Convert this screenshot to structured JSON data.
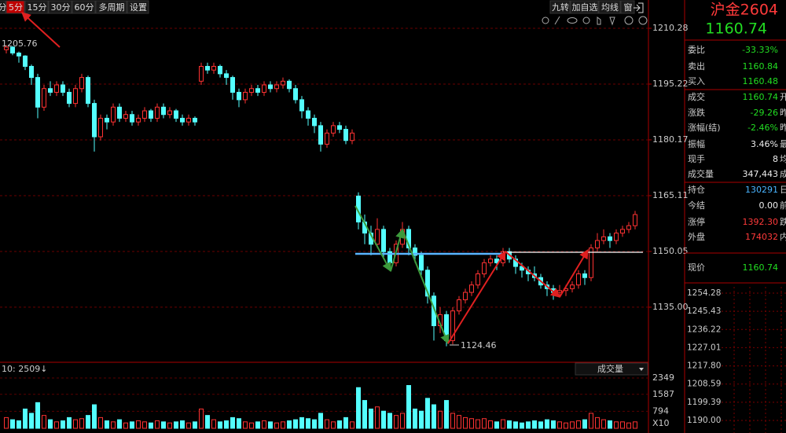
{
  "toolbar": {
    "tabs": [
      "分",
      "5分",
      "15分",
      "30分",
      "60分",
      "多周期",
      "设置"
    ],
    "actions": [
      "九转",
      "加自选",
      "均线",
      "窗"
    ]
  },
  "chart_data": [
    {
      "type": "candlestick",
      "up_color": "#ff3232",
      "down_color": "#54ffff",
      "ylim": [
        1120.35,
        1213.67
      ],
      "yticks": [
        {
          "value": 1210.28,
          "label": "1210.28"
        },
        {
          "value": 1195.22,
          "label": "1195.22"
        },
        {
          "value": 1180.17,
          "label": "1180.17"
        },
        {
          "value": 1165.11,
          "label": "1165.11"
        },
        {
          "value": 1150.05,
          "label": "1150.05"
        },
        {
          "value": 1135,
          "label": "1135.00"
        }
      ],
      "candles": [
        [
          1204.5,
          1205.76,
          1203.5,
          1205.2
        ],
        [
          1205.2,
          1205.5,
          1203,
          1203.6
        ],
        [
          1203.6,
          1204,
          1201,
          1202.8
        ],
        [
          1202.8,
          1203,
          1199,
          1200
        ],
        [
          1200,
          1200.5,
          1195,
          1197
        ],
        [
          1197,
          1198,
          1186,
          1189
        ],
        [
          1189,
          1195,
          1188,
          1194
        ],
        [
          1194,
          1196,
          1192,
          1193
        ],
        [
          1193,
          1196,
          1192,
          1195
        ],
        [
          1195,
          1196,
          1192,
          1193
        ],
        [
          1193,
          1194,
          1189,
          1190
        ],
        [
          1190,
          1195,
          1189,
          1194
        ],
        [
          1194,
          1198,
          1193,
          1197
        ],
        [
          1197,
          1197.5,
          1189,
          1190
        ],
        [
          1190,
          1191,
          1177,
          1181
        ],
        [
          1181,
          1187,
          1180,
          1186
        ],
        [
          1186,
          1187,
          1183,
          1185
        ],
        [
          1185,
          1190,
          1184,
          1189
        ],
        [
          1189,
          1190,
          1185,
          1186
        ],
        [
          1186,
          1188,
          1185,
          1187
        ],
        [
          1187,
          1188,
          1184,
          1185
        ],
        [
          1185,
          1187,
          1184,
          1186
        ],
        [
          1186,
          1189,
          1185,
          1188
        ],
        [
          1188,
          1188.5,
          1185,
          1186
        ],
        [
          1186,
          1190,
          1185,
          1189
        ],
        [
          1189,
          1190,
          1186,
          1187
        ],
        [
          1187,
          1189,
          1186,
          1188
        ],
        [
          1188,
          1188.5,
          1185,
          1186
        ],
        [
          1186,
          1187,
          1184,
          1185
        ],
        [
          1185,
          1187,
          1184,
          1186
        ],
        [
          1186,
          1186.5,
          1184,
          1185
        ],
        [
          1196,
          1201,
          1195,
          1200
        ],
        [
          1200,
          1201,
          1198,
          1199
        ],
        [
          1199,
          1201,
          1198,
          1200
        ],
        [
          1200,
          1200.5,
          1197,
          1198
        ],
        [
          1198,
          1199,
          1195,
          1197
        ],
        [
          1197,
          1197.5,
          1191,
          1193
        ],
        [
          1193,
          1194,
          1189,
          1191
        ],
        [
          1191,
          1194,
          1190,
          1193
        ],
        [
          1193,
          1195,
          1192,
          1194
        ],
        [
          1194,
          1195,
          1192,
          1193
        ],
        [
          1193,
          1196,
          1192,
          1195
        ],
        [
          1195,
          1196,
          1193,
          1194
        ],
        [
          1194,
          1196,
          1193,
          1195
        ],
        [
          1195,
          1197,
          1194,
          1196
        ],
        [
          1196,
          1196.5,
          1193,
          1194
        ],
        [
          1194,
          1195,
          1190,
          1191
        ],
        [
          1191,
          1192,
          1186,
          1188
        ],
        [
          1188,
          1189,
          1184,
          1186
        ],
        [
          1186,
          1187,
          1182,
          1184
        ],
        [
          1184,
          1185,
          1177,
          1179
        ],
        [
          1179,
          1183,
          1178,
          1182
        ],
        [
          1182,
          1185,
          1181,
          1184
        ],
        [
          1184,
          1185,
          1182,
          1183
        ],
        [
          1183,
          1184,
          1179,
          1180
        ],
        [
          1180,
          1183,
          1179,
          1182
        ],
        [
          1165,
          1166,
          1156,
          1158
        ],
        [
          1158,
          1160,
          1152,
          1155
        ],
        [
          1155,
          1157,
          1149,
          1152
        ],
        [
          1152,
          1159,
          1151,
          1156
        ],
        [
          1156,
          1157,
          1148,
          1150
        ],
        [
          1150,
          1151,
          1145,
          1147
        ],
        [
          1147,
          1153,
          1146,
          1152
        ],
        [
          1152,
          1158,
          1151,
          1156
        ],
        [
          1156,
          1157,
          1149,
          1151
        ],
        [
          1151,
          1152,
          1147,
          1149
        ],
        [
          1149,
          1150,
          1143,
          1145
        ],
        [
          1145,
          1146,
          1136,
          1138
        ],
        [
          1138,
          1139,
          1126,
          1130
        ],
        [
          1130,
          1135,
          1128,
          1133
        ],
        [
          1133,
          1134,
          1124.46,
          1126
        ],
        [
          1126,
          1135,
          1125,
          1134
        ],
        [
          1134,
          1138,
          1133,
          1137
        ],
        [
          1137,
          1140,
          1136,
          1139
        ],
        [
          1139,
          1142,
          1138,
          1141
        ],
        [
          1141,
          1145,
          1140,
          1144
        ],
        [
          1144,
          1148,
          1143,
          1147
        ],
        [
          1147,
          1149,
          1146,
          1148
        ],
        [
          1148,
          1149,
          1145,
          1147
        ],
        [
          1147,
          1151,
          1146,
          1150
        ],
        [
          1150,
          1151,
          1147,
          1148
        ],
        [
          1148,
          1149,
          1144,
          1146
        ],
        [
          1146,
          1147,
          1143,
          1145
        ],
        [
          1145,
          1146,
          1142,
          1144
        ],
        [
          1144,
          1146,
          1142,
          1143
        ],
        [
          1143,
          1144,
          1140,
          1141
        ],
        [
          1141,
          1142,
          1138,
          1140
        ],
        [
          1140,
          1141,
          1137,
          1139
        ],
        [
          1139,
          1141,
          1138,
          1139.5
        ],
        [
          1139.5,
          1141,
          1138,
          1140
        ],
        [
          1140,
          1142,
          1139,
          1141
        ],
        [
          1141,
          1145,
          1140,
          1144
        ],
        [
          1144,
          1145,
          1141,
          1143
        ],
        [
          1143,
          1152,
          1142,
          1151
        ],
        [
          1151,
          1155,
          1150,
          1153
        ],
        [
          1153,
          1156,
          1152,
          1154
        ],
        [
          1154,
          1155,
          1151,
          1153
        ],
        [
          1153,
          1156,
          1152,
          1155
        ],
        [
          1155,
          1157,
          1154,
          1156
        ],
        [
          1156,
          1158,
          1155,
          1157
        ],
        [
          1157,
          1161,
          1156,
          1160
        ]
      ]
    },
    {
      "type": "bar",
      "title": "10: 2509↓",
      "selector": "成交量",
      "unit_label": "X10",
      "ylim": [
        0,
        2460
      ],
      "yticks": [
        2349,
        1587,
        794
      ],
      "values": [
        500,
        400,
        350,
        900,
        700,
        1200,
        600,
        400,
        300,
        350,
        500,
        400,
        450,
        600,
        1100,
        500,
        350,
        300,
        400,
        250,
        300,
        350,
        300,
        250,
        350,
        300,
        250,
        300,
        350,
        250,
        300,
        900,
        600,
        400,
        300,
        350,
        500,
        450,
        300,
        250,
        300,
        350,
        300,
        250,
        300,
        350,
        400,
        500,
        450,
        400,
        700,
        400,
        300,
        350,
        500,
        300,
        1900,
        1300,
        900,
        1000,
        800,
        700,
        600,
        700,
        2000,
        900,
        800,
        1400,
        1100,
        800,
        1300,
        700,
        600,
        500,
        450,
        400,
        450,
        350,
        300,
        400,
        350,
        300,
        250,
        300,
        350,
        300,
        400,
        350,
        300,
        250,
        300,
        350,
        400,
        700,
        500,
        400,
        350,
        300,
        300,
        250,
        300
      ]
    }
  ],
  "quote_panel": {
    "name": "沪金2604",
    "price": "1160.74",
    "rows": [
      [
        "委比",
        "-33.33%",
        ""
      ],
      [
        "卖出",
        "1160.84",
        ""
      ],
      [
        "买入",
        "1160.48",
        ""
      ],
      [
        "成交",
        "1160.74",
        "开"
      ],
      [
        "涨跌",
        "-29.26",
        "昨"
      ],
      [
        "涨幅(结)",
        "-2.46%",
        "昨"
      ],
      [
        "振幅",
        "3.46%",
        "最"
      ],
      [
        "现手",
        "8",
        "均"
      ],
      [
        "成交量",
        "347,443",
        "成"
      ],
      [
        "持仓",
        "130291",
        "日"
      ],
      [
        "今结",
        "0.00",
        "前"
      ],
      [
        "涨停",
        "1392.30",
        "跌"
      ],
      [
        "外盘",
        "174032",
        "内"
      ]
    ],
    "last": [
      "现价",
      "1160.74"
    ],
    "mini_chart_ticks": [
      "1254.28",
      "1245.43",
      "1236.22",
      "1227.01",
      "1217.80",
      "1208.59",
      "1199.39",
      "1190.00"
    ]
  }
}
